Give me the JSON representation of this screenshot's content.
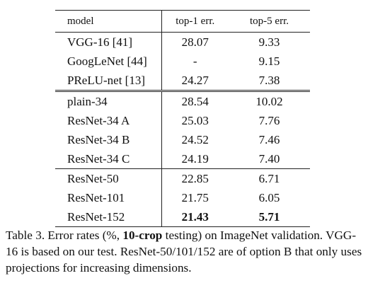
{
  "table": {
    "headers": [
      "model",
      "top-1 err.",
      "top-5 err."
    ],
    "groups": [
      [
        [
          "VGG-16 [41]",
          "28.07",
          "9.33"
        ],
        [
          "GoogLeNet [44]",
          "-",
          "9.15"
        ],
        [
          "PReLU-net [13]",
          "24.27",
          "7.38"
        ]
      ],
      [
        [
          "plain-34",
          "28.54",
          "10.02"
        ],
        [
          "ResNet-34 A",
          "25.03",
          "7.76"
        ],
        [
          "ResNet-34 B",
          "24.52",
          "7.46"
        ],
        [
          "ResNet-34 C",
          "24.19",
          "7.40"
        ]
      ],
      [
        [
          "ResNet-50",
          "22.85",
          "6.71"
        ],
        [
          "ResNet-101",
          "21.75",
          "6.05"
        ],
        [
          "ResNet-152",
          "21.43",
          "5.71"
        ]
      ]
    ]
  },
  "caption": {
    "part1": "Table 3. Error rates (%, ",
    "bold": "10-crop",
    "part2": " testing) on ImageNet validation. VGG-16 is based on our test. ResNet-50/101/152 are of option B that only uses projections for increasing dimensions."
  }
}
